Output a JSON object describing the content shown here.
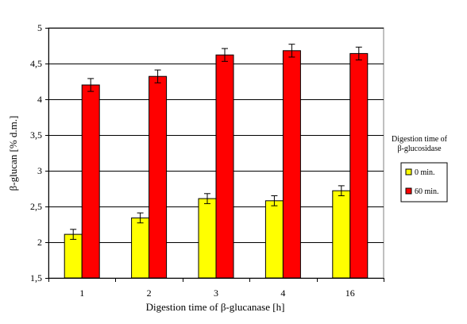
{
  "chart_data": {
    "type": "bar",
    "title": "",
    "xlabel": "Digestion time of β-glucanase [h]",
    "ylabel": "β-glucan [% d.m.]",
    "categories": [
      "1",
      "2",
      "3",
      "4",
      "16"
    ],
    "ylim": [
      1.5,
      5
    ],
    "yticks": [
      "1,5",
      "2",
      "2,5",
      "3",
      "3,5",
      "4",
      "4,5",
      "5"
    ],
    "ytick_values": [
      1.5,
      2,
      2.5,
      3,
      3.5,
      4,
      4.5,
      5
    ],
    "grid": "horizontal",
    "legend": {
      "title_line1": "Digestion time of",
      "title_line2": "β-glucosidase",
      "placement": "right"
    },
    "series": [
      {
        "name": "0 min.",
        "color": "#ffff00",
        "values": [
          2.11,
          2.34,
          2.61,
          2.58,
          2.72
        ],
        "errors": [
          0.07,
          0.07,
          0.07,
          0.07,
          0.07
        ]
      },
      {
        "name": "60 min.",
        "color": "#ff0000",
        "values": [
          4.2,
          4.32,
          4.62,
          4.68,
          4.64
        ],
        "errors": [
          0.09,
          0.09,
          0.09,
          0.09,
          0.09
        ]
      }
    ]
  }
}
